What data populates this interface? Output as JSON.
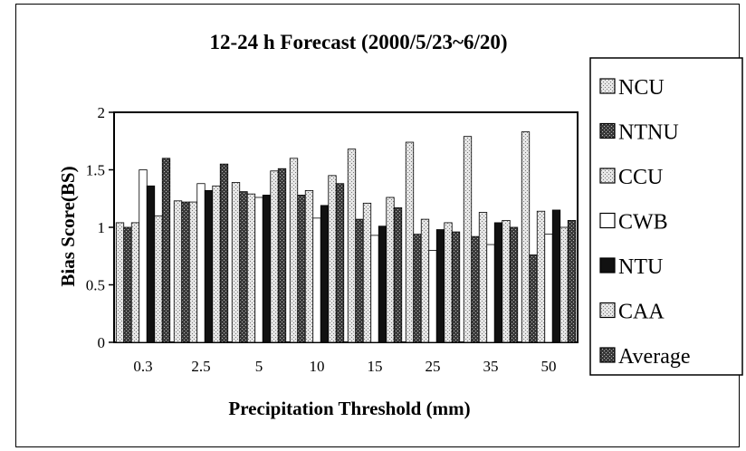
{
  "chart_data": {
    "type": "bar",
    "title": "12-24 h Forecast (2000/5/23~6/20)",
    "xlabel": "Precipitation Threshold (mm)",
    "ylabel": "Bias Score(BS)",
    "ylim": [
      0,
      2
    ],
    "yticks": [
      "0",
      "0.5",
      "1",
      "1.5",
      "2"
    ],
    "categories": [
      "0.3",
      "2.5",
      "5",
      "10",
      "15",
      "25",
      "35",
      "50"
    ],
    "legend_position": "right",
    "grid": false,
    "series": [
      {
        "name": "NCU",
        "color": "#c8c8c8",
        "pattern": "light-dots",
        "values": [
          1.04,
          1.23,
          1.39,
          1.6,
          1.68,
          1.74,
          1.79,
          1.83
        ]
      },
      {
        "name": "NTNU",
        "color": "#505050",
        "pattern": "dark-dots",
        "values": [
          1.0,
          1.22,
          1.31,
          1.28,
          1.07,
          0.94,
          0.92,
          0.76
        ]
      },
      {
        "name": "CCU",
        "color": "#dcdcdc",
        "pattern": "light-dots",
        "values": [
          1.04,
          1.22,
          1.29,
          1.32,
          1.21,
          1.07,
          1.13,
          1.14
        ]
      },
      {
        "name": "CWB",
        "color": "#ffffff",
        "pattern": "none",
        "values": [
          1.5,
          1.38,
          1.26,
          1.08,
          0.93,
          0.8,
          0.85,
          0.94
        ]
      },
      {
        "name": "NTU",
        "color": "#111111",
        "pattern": "solid",
        "values": [
          1.36,
          1.32,
          1.28,
          1.19,
          1.01,
          0.98,
          1.04,
          1.15
        ]
      },
      {
        "name": "CAA",
        "color": "#d0d0d0",
        "pattern": "light-dots",
        "values": [
          1.1,
          1.36,
          1.49,
          1.45,
          1.26,
          1.04,
          1.06,
          1.0
        ]
      },
      {
        "name": "Average",
        "color": "#3c3c3c",
        "pattern": "dark-dots",
        "values": [
          1.6,
          1.55,
          1.51,
          1.38,
          1.17,
          0.96,
          1.0,
          1.06
        ]
      }
    ]
  }
}
